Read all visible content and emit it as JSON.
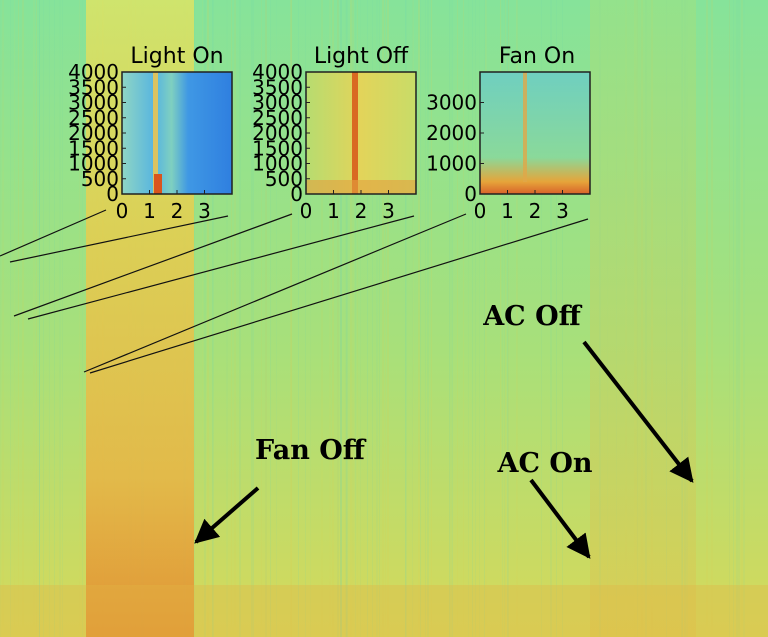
{
  "colors": {
    "background_main": "#7fe08a",
    "background_warm": "#e8d95a",
    "fan_band": "#e5c24a",
    "fan_band_hot": "#e08a2a",
    "ac_band": "#d8df62",
    "inset_border": "#202020"
  },
  "chart_data": [
    {
      "type": "heatmap",
      "title": "",
      "xlabel": "",
      "ylabel": "",
      "annotations": [
        {
          "id": "fan-off",
          "text": "Fan Off"
        },
        {
          "id": "ac-on",
          "text": "AC On"
        },
        {
          "id": "ac-off",
          "text": "AC Off"
        }
      ]
    },
    {
      "type": "heatmap",
      "title": "Light On",
      "xticks": [
        "0",
        "1",
        "2",
        "3"
      ],
      "yticks": [
        "4000",
        "3500",
        "3000",
        "2500",
        "2000",
        "1500",
        "1000",
        "500",
        "0"
      ],
      "xlim": [
        0,
        4
      ],
      "ylim": [
        0,
        4000
      ],
      "dominant_color": "#3a9fe8"
    },
    {
      "type": "heatmap",
      "title": "Light Off",
      "xticks": [
        "0",
        "1",
        "2",
        "3"
      ],
      "yticks": [
        "4000",
        "3500",
        "3000",
        "2500",
        "2000",
        "1500",
        "1000",
        "500",
        "0"
      ],
      "xlim": [
        0,
        4
      ],
      "ylim": [
        0,
        4000
      ],
      "dominant_color": "#e9d452"
    },
    {
      "type": "heatmap",
      "title": "Fan On",
      "xticks": [
        "0",
        "1",
        "2",
        "3"
      ],
      "yticks": [
        "3000",
        "2000",
        "1000",
        "0"
      ],
      "xlim": [
        0,
        4
      ],
      "ylim": [
        0,
        4000
      ],
      "dominant_color": "#78d6a0"
    }
  ]
}
